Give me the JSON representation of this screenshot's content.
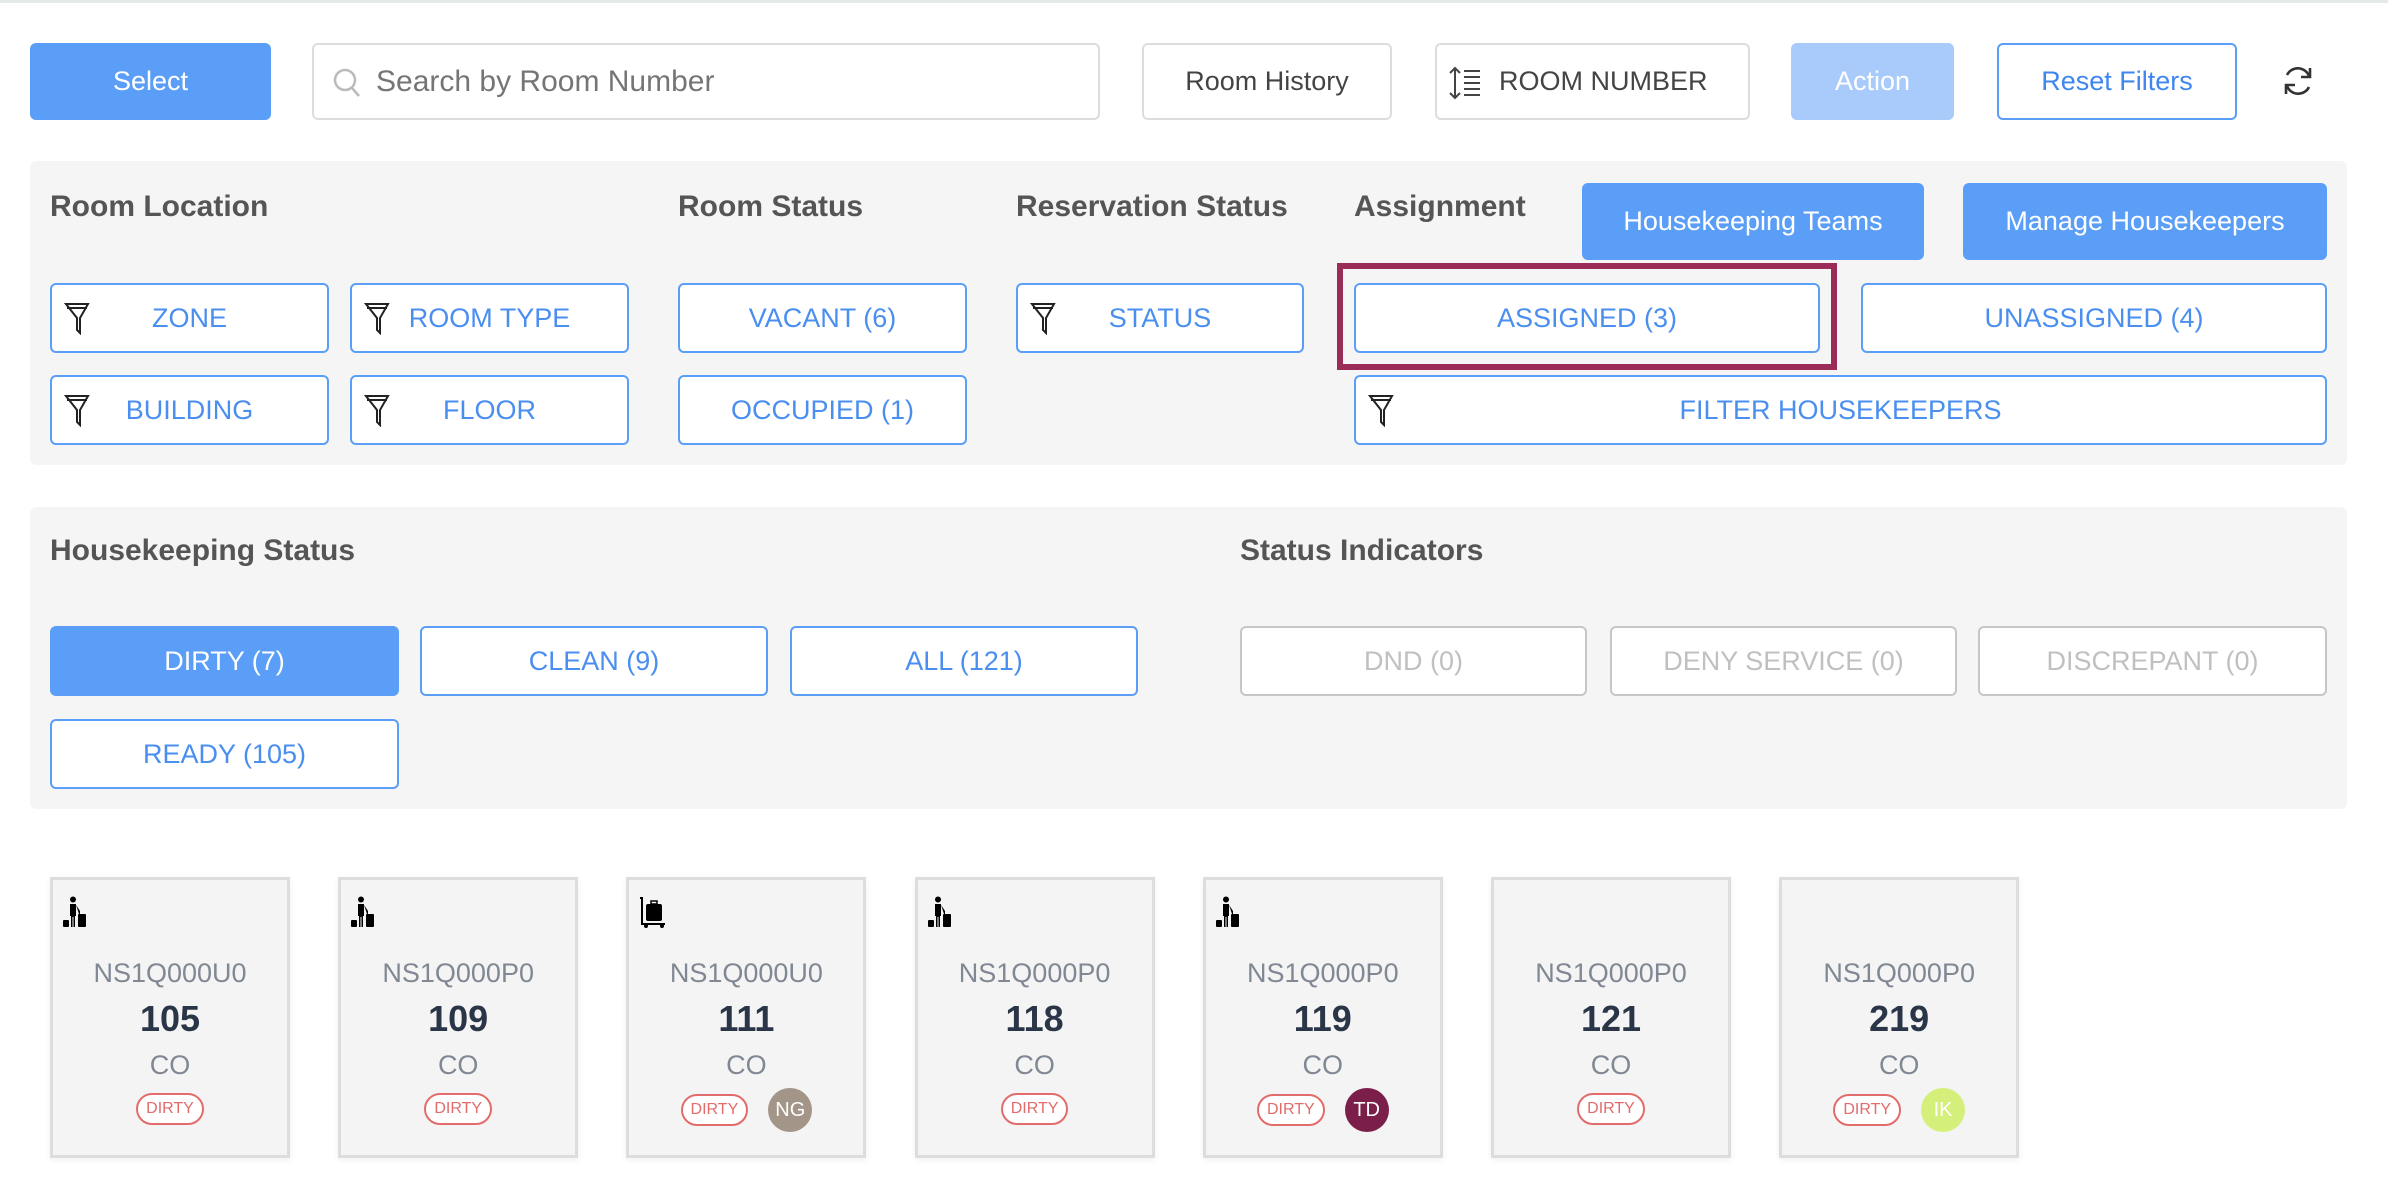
{
  "toolbar": {
    "select_label": "Select",
    "search_placeholder": "Search by Room Number",
    "room_history_label": "Room History",
    "sort_label": "ROOM NUMBER",
    "action_label": "Action",
    "reset_filters_label": "Reset Filters"
  },
  "filters": {
    "room_location": {
      "heading": "Room Location",
      "zone": "ZONE",
      "room_type": "ROOM TYPE",
      "building": "BUILDING",
      "floor": "FLOOR"
    },
    "room_status": {
      "heading": "Room Status",
      "vacant": "VACANT (6)",
      "occupied": "OCCUPIED (1)"
    },
    "reservation_status": {
      "heading": "Reservation Status",
      "status": "STATUS"
    },
    "assignment": {
      "heading": "Assignment",
      "housekeeping_teams": "Housekeeping Teams",
      "manage_housekeepers": "Manage Housekeepers",
      "assigned": "ASSIGNED (3)",
      "unassigned": "UNASSIGNED (4)",
      "filter_housekeepers": "FILTER HOUSEKEEPERS"
    },
    "highlight_color": "#9b2c5a"
  },
  "housekeeping": {
    "heading": "Housekeeping Status",
    "dirty": "DIRTY (7)",
    "clean": "CLEAN (9)",
    "all": "ALL (121)",
    "ready": "READY (105)"
  },
  "indicators": {
    "heading": "Status Indicators",
    "dnd": "DND (0)",
    "deny_service": "DENY SERVICE (0)",
    "discrepant": "DISCREPANT (0)"
  },
  "rooms": [
    {
      "icon": "guest-luggage-icon",
      "code": "NS1Q000U0",
      "number": "105",
      "status": "CO",
      "badge": "DIRTY"
    },
    {
      "icon": "guest-luggage-icon",
      "code": "NS1Q000P0",
      "number": "109",
      "status": "CO",
      "badge": "DIRTY"
    },
    {
      "icon": "luggage-cart-icon",
      "code": "NS1Q000U0",
      "number": "111",
      "status": "CO",
      "badge": "DIRTY",
      "avatar": "NG",
      "avatar_color": "#a39587"
    },
    {
      "icon": "guest-luggage-icon",
      "code": "NS1Q000P0",
      "number": "118",
      "status": "CO",
      "badge": "DIRTY"
    },
    {
      "icon": "guest-luggage-icon",
      "code": "NS1Q000P0",
      "number": "119",
      "status": "CO",
      "badge": "DIRTY",
      "avatar": "TD",
      "avatar_color": "#7c1e4a"
    },
    {
      "code": "NS1Q000P0",
      "number": "121",
      "status": "CO",
      "badge": "DIRTY"
    },
    {
      "code": "NS1Q000P0",
      "number": "219",
      "status": "CO",
      "badge": "DIRTY",
      "avatar": "IK",
      "avatar_color": "#d4f07a"
    }
  ]
}
